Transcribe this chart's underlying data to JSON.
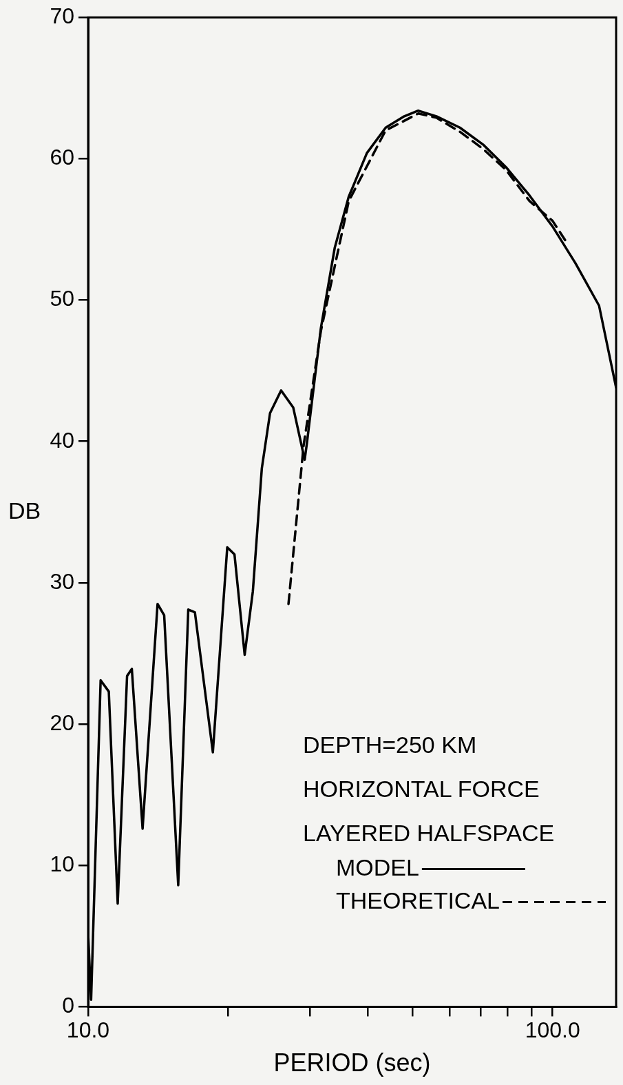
{
  "chart_data": {
    "type": "line",
    "xlabel": "PERIOD (sec)",
    "ylabel": "DB",
    "log": "x",
    "xlim": [
      10,
      137
    ],
    "xticks": [
      {
        "value": 10,
        "label": "10.0"
      },
      {
        "value": 20,
        "label": null
      },
      {
        "value": 30,
        "label": null
      },
      {
        "value": 40,
        "label": null
      },
      {
        "value": 50,
        "label": null
      },
      {
        "value": 60,
        "label": null
      },
      {
        "value": 70,
        "label": null
      },
      {
        "value": 80,
        "label": null
      },
      {
        "value": 90,
        "label": null
      },
      {
        "value": 100,
        "label": "100.0"
      }
    ],
    "ylim": [
      0,
      70
    ],
    "yticks": [
      0,
      10,
      20,
      30,
      40,
      50,
      60,
      70
    ],
    "grid": false,
    "legend": "bottom right",
    "marker": "none",
    "annotations": [
      "DEPTH=250 KM",
      "HORIZONTAL FORCE",
      "LAYERED HALFSPACE"
    ],
    "series": [
      {
        "name": "MODEL",
        "color": "#000000",
        "line_style": "solid",
        "x": [
          10,
          10.15,
          10.64,
          11.08,
          11.58,
          12.13,
          12.42,
          13.1,
          14.11,
          14.58,
          15.63,
          16.43,
          16.98,
          18.56,
          19.93,
          20.66,
          21.73,
          22.63,
          23.66,
          24.64,
          26.03,
          27.64,
          29.26,
          29.59,
          31.7,
          33.96,
          36.39,
          39.83,
          43.72,
          47.93,
          51.35,
          56.23,
          63.15,
          70.84,
          79.38,
          89.17,
          100,
          112,
          125.9,
          137
        ],
        "values": [
          5.2,
          0.5,
          23.1,
          22.3,
          7.3,
          23.4,
          23.9,
          12.6,
          28.5,
          27.7,
          8.6,
          28.1,
          27.9,
          18,
          32.5,
          32,
          24.9,
          29.4,
          38.1,
          42,
          43.6,
          42.4,
          38.7,
          39.9,
          48,
          53.7,
          57.3,
          60.4,
          62.2,
          63,
          63.4,
          63,
          62.2,
          61,
          59.4,
          57.4,
          55.2,
          52.6,
          49.6,
          43.8
        ]
      },
      {
        "name": "THEORETICAL",
        "color": "#000000",
        "line_style": "dashed",
        "x": [
          27,
          29.1,
          31.7,
          36.4,
          43.7,
          51.4,
          56.2,
          63.2,
          70.8,
          79.4,
          89.2,
          100,
          107.1
        ],
        "values": [
          28.5,
          39.7,
          47.8,
          57,
          62,
          63.2,
          62.9,
          61.9,
          60.7,
          59.2,
          57,
          55.6,
          54.1
        ]
      }
    ]
  }
}
